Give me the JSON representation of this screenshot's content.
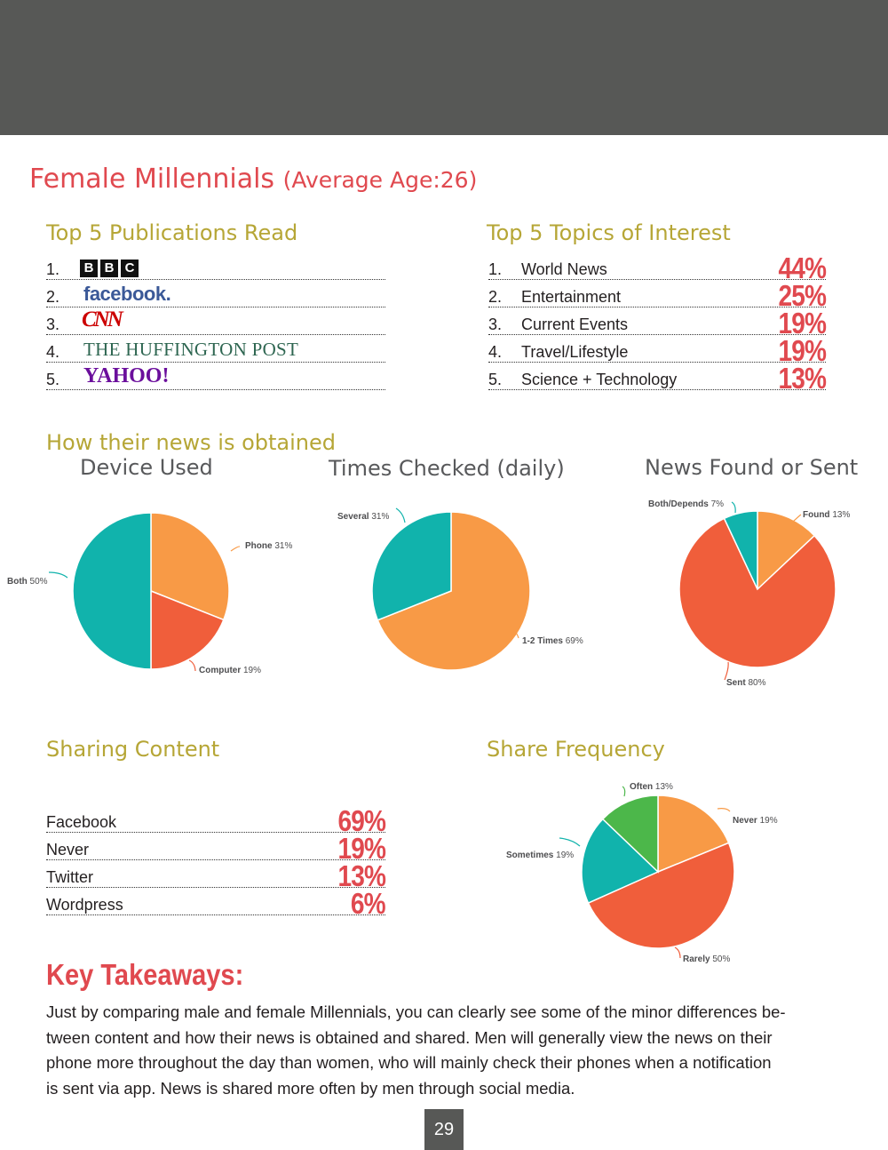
{
  "title": "Female Millennials",
  "subtitle": "(Average Age:26)",
  "publications": {
    "heading": "Top 5 Publications Read",
    "items": [
      {
        "num": "1.",
        "logo": "BBC",
        "letters": [
          "B",
          "B",
          "C"
        ]
      },
      {
        "num": "2.",
        "logo": "facebook."
      },
      {
        "num": "3.",
        "logo": "CNN"
      },
      {
        "num": "4.",
        "logo": "THE HUFFINGTON POST"
      },
      {
        "num": "5.",
        "logo": "YAHOO!"
      }
    ]
  },
  "topics": {
    "heading": "Top 5 Topics of Interest",
    "items": [
      {
        "num": "1.",
        "label": "World News",
        "pct": "44%"
      },
      {
        "num": "2.",
        "label": "Entertainment",
        "pct": "25%"
      },
      {
        "num": "3.",
        "label": "Current Events",
        "pct": "19%"
      },
      {
        "num": "4.",
        "label": "Travel/Lifestyle",
        "pct": "19%"
      },
      {
        "num": "5.",
        "label": "Science + Technology",
        "pct": "13%"
      }
    ]
  },
  "news_heading": "How their news is obtained",
  "sharing": {
    "heading": "Sharing Content",
    "items": [
      {
        "label": "Facebook",
        "pct": "69%"
      },
      {
        "label": "Never",
        "pct": "19%"
      },
      {
        "label": "Twitter",
        "pct": "13%"
      },
      {
        "label": "Wordpress",
        "pct": "6%"
      }
    ]
  },
  "share_frequency_heading": "Share Frequency",
  "colors": {
    "orange": "#f89a46",
    "red": "#f05e3b",
    "teal": "#11b3ac",
    "green": "#4cb74a",
    "accent_red": "#e0494f",
    "olive": "#b6a636",
    "band": "#575856"
  },
  "chart_data": [
    {
      "type": "pie",
      "title": "Device Used",
      "series": [
        {
          "label": "Phone",
          "value": 31,
          "display": "31%",
          "color": "#f89a46"
        },
        {
          "label": "Computer",
          "value": 19,
          "display": "19%",
          "color": "#f05e3b"
        },
        {
          "label": "Both",
          "value": 50,
          "display": "50%",
          "color": "#11b3ac"
        }
      ]
    },
    {
      "type": "pie",
      "title": "Times Checked (daily)",
      "series": [
        {
          "label": "1-2 Times",
          "value": 69,
          "display": "69%",
          "color": "#f89a46"
        },
        {
          "label": "Several",
          "value": 31,
          "display": "31%",
          "color": "#11b3ac"
        }
      ]
    },
    {
      "type": "pie",
      "title": "News Found or Sent",
      "series": [
        {
          "label": "Found",
          "value": 13,
          "display": "13%",
          "color": "#f89a46"
        },
        {
          "label": "Sent",
          "value": 80,
          "display": "80%",
          "color": "#f05e3b"
        },
        {
          "label": "Both/Depends",
          "value": 7,
          "display": "7%",
          "color": "#11b3ac"
        }
      ]
    },
    {
      "type": "pie",
      "title": "",
      "series": [
        {
          "label": "Never",
          "value": 19,
          "display": "19%",
          "color": "#f89a46"
        },
        {
          "label": "Rarely",
          "value": 50,
          "display": "50%",
          "color": "#f05e3b"
        },
        {
          "label": "Sometimes",
          "value": 19,
          "display": "19%",
          "color": "#11b3ac"
        },
        {
          "label": "Often",
          "value": 13,
          "display": "13%",
          "color": "#4cb74a"
        }
      ]
    }
  ],
  "key_takeaways": {
    "heading": "Key Takeaways:",
    "lines": [
      "Just by comparing male and female Millennials, you can clearly see some of the minor differences be-",
      "tween content and how their news is obtained and shared.  Men will generally view the news on their",
      "phone more throughout the day than women, who will mainly check their phones when a notification",
      "is sent via app.  News is shared more often by men through social media."
    ]
  },
  "page_number": "29"
}
